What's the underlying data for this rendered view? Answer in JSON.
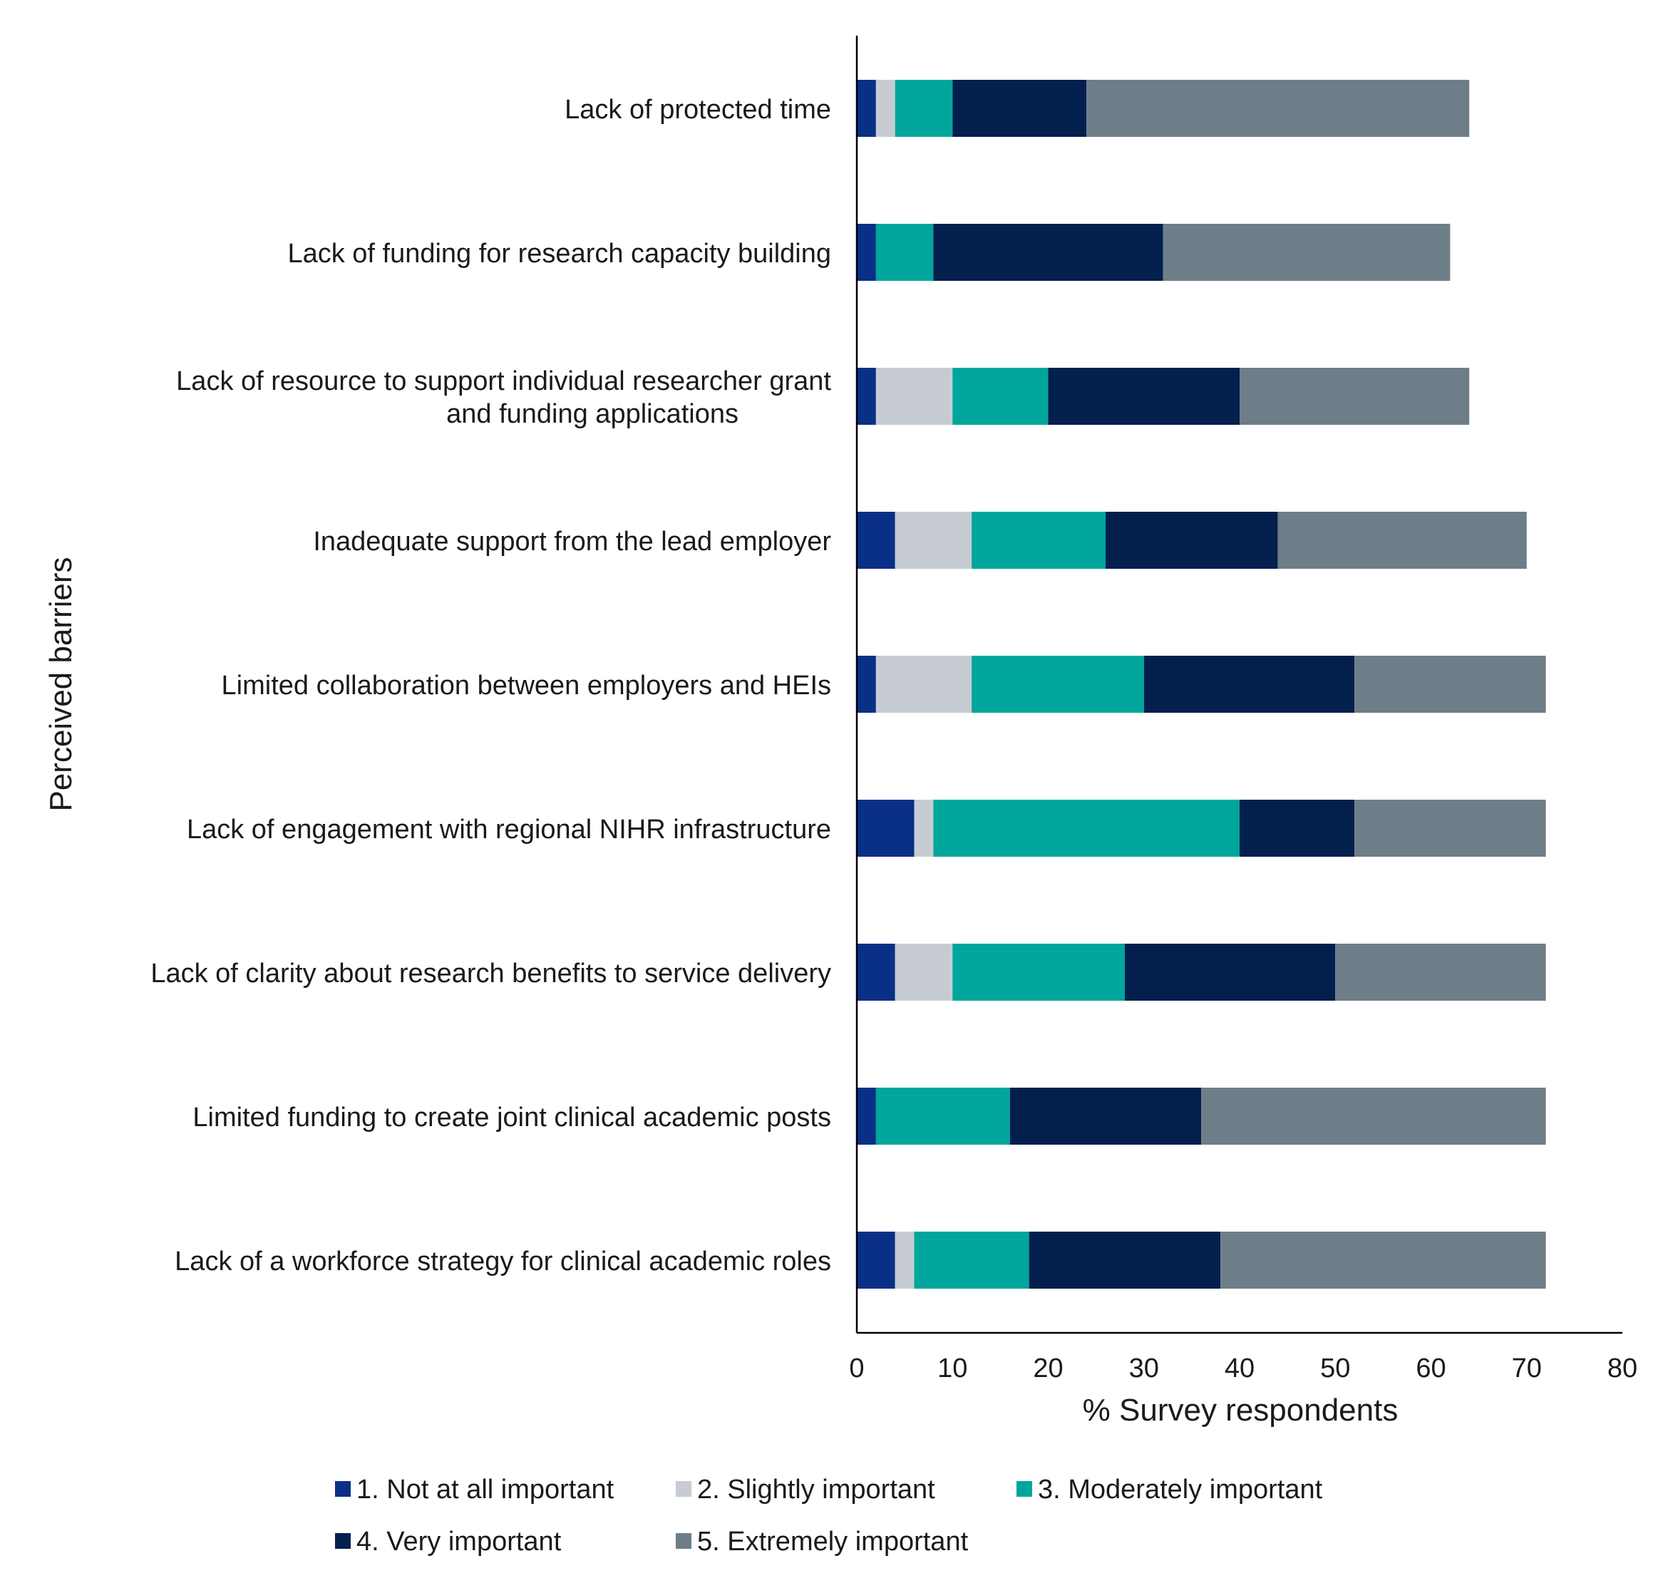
{
  "chart_data": {
    "type": "bar",
    "orientation": "horizontal",
    "stacked": true,
    "title": "",
    "xlabel": "% Survey respondents",
    "ylabel": "Perceived barriers",
    "xlim": [
      0,
      80
    ],
    "xticks": [
      0,
      10,
      20,
      30,
      40,
      50,
      60,
      70,
      80
    ],
    "grid": false,
    "legend_position": "bottom",
    "categories": [
      [
        "Lack of protected time"
      ],
      [
        "Lack of funding for research capacity building"
      ],
      [
        "Lack of resource to support individual researcher grant",
        "and funding applications"
      ],
      [
        "Inadequate support from the lead employer"
      ],
      [
        "Limited collaboration between employers and HEIs"
      ],
      [
        "Lack of engagement with regional NIHR infrastructure"
      ],
      [
        "Lack of clarity about research benefits to service delivery"
      ],
      [
        "Limited funding to create joint clinical academic posts"
      ],
      [
        "Lack of a workforce strategy for clinical academic roles"
      ]
    ],
    "series": [
      {
        "name": "1. Not at all important",
        "color": "#0a2f86",
        "values": [
          2,
          2,
          2,
          4,
          2,
          6,
          4,
          2,
          4
        ]
      },
      {
        "name": "2. Slightly important",
        "color": "#c6ccd2",
        "values": [
          2,
          0,
          8,
          8,
          10,
          2,
          6,
          0,
          2
        ]
      },
      {
        "name": "3. Moderately important",
        "color": "#00a59b",
        "values": [
          6,
          6,
          10,
          14,
          18,
          32,
          18,
          14,
          12
        ]
      },
      {
        "name": "4. Very important",
        "color": "#021f4e",
        "values": [
          14,
          24,
          20,
          18,
          22,
          12,
          22,
          20,
          20
        ]
      },
      {
        "name": "5. Extremely important",
        "color": "#6e7e89",
        "values": [
          40,
          30,
          24,
          26,
          20,
          20,
          22,
          36,
          34
        ]
      }
    ]
  }
}
